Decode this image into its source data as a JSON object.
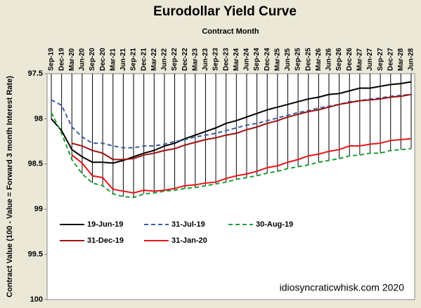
{
  "chart_data": {
    "type": "line",
    "title": "Eurodollar Yield Curve",
    "x_label": "Contract Month",
    "y_label": "Contract Value (100 - Value = Forward 3 month Interest Rate)",
    "annotation": "idiosyncraticwhisk.com   2020",
    "categories": [
      "Sep-19",
      "Dec-19",
      "Mar-20",
      "Jun-20",
      "Sep-20",
      "Dec-20",
      "Mar-21",
      "Jun-21",
      "Sep-21",
      "Dec-21",
      "Mar-22",
      "Jun-22",
      "Sep-22",
      "Dec-22",
      "Mar-23",
      "Jun-23",
      "Sep-23",
      "Dec-23",
      "Mar-24",
      "Jun-24",
      "Sep-24",
      "Dec-24",
      "Mar-25",
      "Jun-25",
      "Sep-25",
      "Dec-25",
      "Mar-26",
      "Jun-26",
      "Sep-26",
      "Dec-26",
      "Mar-27",
      "Jun-27",
      "Sep-27",
      "Dec-27",
      "Mar-28",
      "Jun-28"
    ],
    "ylim": [
      97.5,
      100
    ],
    "y_inverted": true,
    "x_axis_position": "top",
    "yticks": [
      97.5,
      98,
      98.5,
      99,
      99.5,
      100
    ],
    "series": [
      {
        "name": "19-Jun-19",
        "color": "#000000",
        "dash": false,
        "values": [
          98.0,
          98.13,
          98.34,
          98.42,
          98.48,
          98.48,
          98.49,
          98.46,
          98.42,
          98.38,
          98.35,
          98.3,
          98.27,
          98.22,
          98.18,
          98.14,
          98.1,
          98.05,
          98.02,
          97.98,
          97.94,
          97.9,
          97.87,
          97.84,
          97.81,
          97.78,
          97.76,
          97.73,
          97.72,
          97.69,
          97.66,
          97.66,
          97.64,
          97.62,
          97.61,
          97.59
        ]
      },
      {
        "name": "31-Jul-19",
        "color": "#3a5fa0",
        "dash": true,
        "values": [
          97.79,
          97.85,
          98.09,
          98.2,
          98.27,
          98.27,
          98.3,
          98.32,
          98.32,
          98.3,
          98.3,
          98.28,
          98.25,
          98.23,
          98.2,
          98.18,
          98.16,
          98.13,
          98.1,
          98.07,
          98.05,
          98.02,
          97.99,
          97.96,
          97.93,
          97.91,
          97.88,
          97.86,
          97.84,
          97.81,
          97.8,
          97.78,
          97.77,
          97.75,
          97.74,
          97.73
        ]
      },
      {
        "name": "30-Aug-19",
        "color": "#1e9e3a",
        "dash": true,
        "values": [
          97.93,
          98.16,
          98.45,
          98.61,
          98.71,
          98.74,
          98.83,
          98.86,
          98.87,
          98.83,
          98.82,
          98.8,
          98.79,
          98.77,
          98.76,
          98.74,
          98.72,
          98.7,
          98.67,
          98.65,
          98.63,
          98.6,
          98.58,
          98.55,
          98.53,
          98.51,
          98.48,
          98.46,
          98.44,
          98.41,
          98.4,
          98.38,
          98.38,
          98.35,
          98.34,
          98.33
        ]
      },
      {
        "name": "31-Dec-19",
        "color": "#a01010",
        "dash": false,
        "values": [
          null,
          null,
          98.27,
          98.3,
          98.35,
          98.38,
          98.45,
          98.45,
          98.44,
          98.4,
          98.38,
          98.35,
          98.33,
          98.29,
          98.26,
          98.23,
          98.21,
          98.18,
          98.16,
          98.12,
          98.09,
          98.05,
          98.02,
          97.98,
          97.95,
          97.92,
          97.9,
          97.87,
          97.84,
          97.82,
          97.8,
          97.79,
          97.78,
          97.76,
          97.75,
          97.73
        ]
      },
      {
        "name": "31-Jan-20",
        "color": "#e8161b",
        "dash": false,
        "values": [
          null,
          null,
          98.4,
          98.49,
          98.63,
          98.65,
          98.78,
          98.8,
          98.82,
          98.79,
          98.8,
          98.79,
          98.77,
          98.74,
          98.73,
          98.71,
          98.7,
          98.66,
          98.63,
          98.61,
          98.58,
          98.54,
          98.52,
          98.48,
          98.45,
          98.41,
          98.39,
          98.36,
          98.34,
          98.3,
          98.3,
          98.28,
          98.27,
          98.24,
          98.23,
          98.22
        ]
      }
    ]
  }
}
